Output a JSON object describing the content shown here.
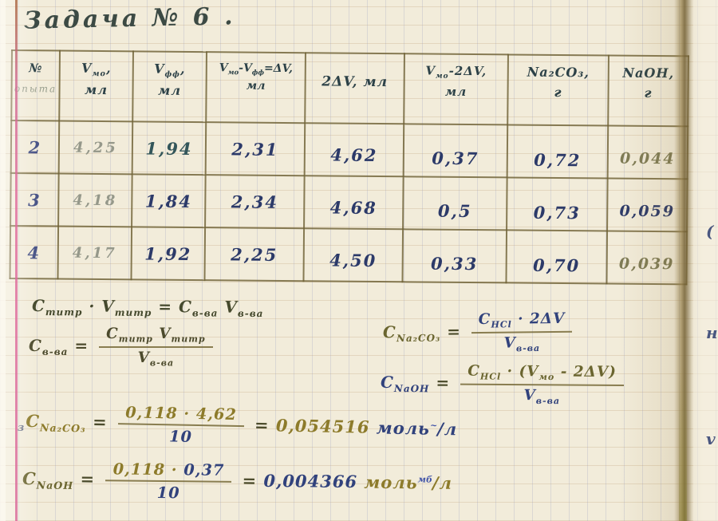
{
  "colors": {
    "paper": "#f2ecda",
    "grid_vertical": "#9198be",
    "grid_horizontal": "#c1a47c",
    "margin_pink": "#df6b9d",
    "table_line": "#6e6034",
    "ink_navy": "#2c3a69",
    "ink_dark_teal": "#2c4147",
    "ink_olive": "#4c4a2c",
    "ink_gold": "#8d7b2b",
    "pencil_gray": "#95988a"
  },
  "page": {
    "title": "Задача № 6 ."
  },
  "table": {
    "headers": [
      [
        {
          "span": "№",
          "cls": "hdr-no"
        },
        {
          "br": true
        },
        {
          "span": "опыта",
          "cls": "pencil-sm"
        }
      ],
      [
        "V",
        {
          "sub": "мо"
        },
        ",",
        {
          "br": true
        },
        "мл"
      ],
      [
        "V",
        {
          "sub": "фф"
        },
        ",",
        {
          "br": true
        },
        "мл"
      ],
      [
        "V",
        {
          "sub": "мо"
        },
        "-V",
        {
          "sub": "фф"
        },
        "=ΔV,",
        {
          "br": true
        },
        "мл"
      ],
      [
        "2ΔV, мл"
      ],
      [
        "V",
        {
          "sub": "мо"
        },
        "-2ΔV,",
        {
          "br": true
        },
        "мл"
      ],
      [
        "Na₂CO₃,",
        {
          "br": true
        },
        "г"
      ],
      [
        "NaOH,",
        {
          "br": true
        },
        "г"
      ]
    ],
    "rows": [
      [
        "2",
        "4,25",
        "1,94",
        "2,31",
        "4,62",
        "0,37",
        "0,72",
        "0,044"
      ],
      [
        "3",
        "4,18",
        "1,84",
        "2,34",
        "4,68",
        "0,5",
        "0,73",
        "0,059"
      ],
      [
        "4",
        "4,17",
        "1,92",
        "2,25",
        "4,50",
        "0,33",
        "0,70",
        "0,039"
      ]
    ]
  },
  "formulas": {
    "balance": {
      "tokens": [
        "C",
        {
          "sub": "титр"
        },
        " · V",
        {
          "sub": "титр"
        },
        " = C",
        {
          "sub": "в-ва"
        },
        " V",
        {
          "sub": "в-ва"
        }
      ]
    },
    "substance": {
      "tokens": [
        "C",
        {
          "sub": "в-ва"
        },
        " = ",
        {
          "frac": [
            [
              "C",
              {
                "sub": "титр"
              },
              " V",
              {
                "sub": "титр"
              }
            ],
            [
              "V",
              {
                "sub": "в-ва"
              }
            ]
          ]
        }
      ]
    },
    "na2co3_def": {
      "tokens": [
        {
          "span": [
            "C",
            {
              "sub": "Na₂CO₃"
            }
          ],
          "cls": "ink-olive2"
        },
        " = ",
        {
          "frac": [
            [
              {
                "span": [
                  "C",
                  {
                    "sub": "HCl"
                  },
                  " · 2ΔV"
                ],
                "cls": "ink-blue"
              }
            ],
            [
              {
                "span": [
                  "V",
                  {
                    "sub": "в-ва"
                  }
                ],
                "cls": "ink-blue"
              }
            ]
          ]
        }
      ]
    },
    "naoh_def": {
      "tokens": [
        {
          "span": [
            "C",
            {
              "sub": "NaOH"
            }
          ],
          "cls": "ink-blue"
        },
        " = ",
        {
          "frac": [
            [
              {
                "span": [
                  "C",
                  {
                    "sub": "HCl"
                  },
                  " · (V",
                  {
                    "sub": "мо"
                  },
                  " - 2ΔV)"
                ],
                "cls": "ink-olive2"
              }
            ],
            [
              {
                "span": [
                  "V",
                  {
                    "sub": "в-ва"
                  }
                ],
                "cls": "ink-blue"
              }
            ]
          ]
        }
      ]
    },
    "na2co3_calc": {
      "tokens": [
        {
          "span": "з",
          "cls": "premark"
        },
        {
          "span": [
            "C",
            {
              "sub": "Na₂CO₃"
            }
          ],
          "cls": "ink-gold"
        },
        " = ",
        {
          "frac": [
            [
              {
                "span": "0,118 · 4,62",
                "cls": "ink-gold"
              }
            ],
            [
              {
                "span": "10",
                "cls": "ink-blue"
              }
            ]
          ]
        },
        " = ",
        {
          "span": "0,054516",
          "cls": "ink-gold"
        },
        " ",
        {
          "span": [
            "моль",
            {
              "sup": [
                {
                  "span": "~",
                  "cls": "mark-blue"
                }
              ]
            },
            "/л"
          ],
          "cls": "ink-blue"
        }
      ]
    },
    "naoh_calc": {
      "tokens": [
        {
          "span": [
            "C",
            {
              "sub": "NaOH"
            }
          ],
          "cls": "ink-olive2"
        },
        " = ",
        {
          "frac": [
            [
              {
                "span": "0,118 · ",
                "cls": "ink-gold"
              },
              {
                "span": "0,37",
                "cls": "ink-blue"
              }
            ],
            [
              {
                "span": "10",
                "cls": "ink-blue"
              }
            ]
          ]
        },
        " = ",
        {
          "span": "0,004366",
          "cls": "ink-blue"
        },
        " ",
        {
          "span": [
            "моль",
            {
              "sup": [
                {
                  "span": "мб",
                  "cls": "mark-blue"
                }
              ]
            },
            "/л"
          ],
          "cls": "ink-gold"
        }
      ]
    }
  },
  "edge": {
    "glyphs": [
      "(",
      "н",
      "v"
    ]
  }
}
